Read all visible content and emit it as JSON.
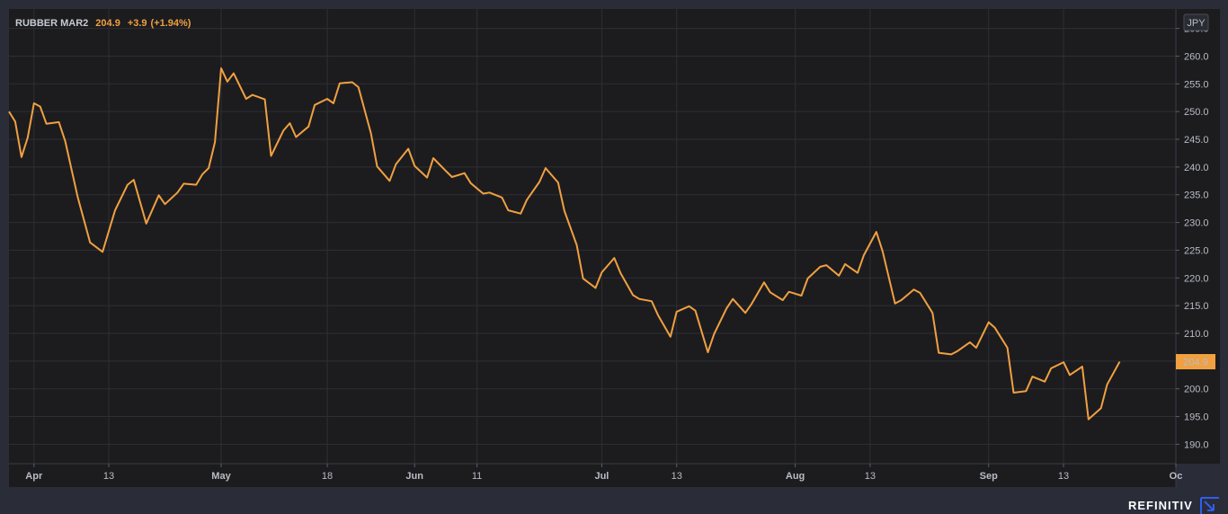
{
  "chart_data": {
    "type": "line",
    "legend": {
      "symbol": "RUBBER MAR2",
      "last": "204.9",
      "change": "+3.9",
      "change_pct": "(+1.94%)"
    },
    "currency": "JPY",
    "last_value_label": "204.9",
    "last_value": 204.9,
    "y_ticks": [
      265,
      260,
      255,
      250,
      245,
      240,
      235,
      230,
      225,
      220,
      215,
      210,
      205,
      200,
      195,
      190
    ],
    "y_tick_labels": [
      "265.0",
      "260.0",
      "255.0",
      "250.0",
      "245.0",
      "240.0",
      "235.0",
      "230.0",
      "225.0",
      "220.0",
      "215.0",
      "210.0",
      "205.0",
      "200.0",
      "195.0",
      "190.0"
    ],
    "ylim": [
      186.5,
      268.5
    ],
    "x_ticks": [
      {
        "label": "Apr",
        "date": "2021-04-01",
        "bold": true
      },
      {
        "label": "13",
        "date": "2021-04-13",
        "bold": false
      },
      {
        "label": "May",
        "date": "2021-05-01",
        "bold": true
      },
      {
        "label": "18",
        "date": "2021-05-18",
        "bold": false
      },
      {
        "label": "Jun",
        "date": "2021-06-01",
        "bold": true
      },
      {
        "label": "11",
        "date": "2021-06-11",
        "bold": false
      },
      {
        "label": "Jul",
        "date": "2021-07-01",
        "bold": true
      },
      {
        "label": "13",
        "date": "2021-07-13",
        "bold": false
      },
      {
        "label": "Aug",
        "date": "2021-08-01",
        "bold": true
      },
      {
        "label": "13",
        "date": "2021-08-13",
        "bold": false
      },
      {
        "label": "Sep",
        "date": "2021-09-01",
        "bold": true
      },
      {
        "label": "13",
        "date": "2021-09-13",
        "bold": false
      },
      {
        "label": "Oc",
        "date": "2021-10-01",
        "bold": true
      }
    ],
    "xlim": [
      "2021-03-28",
      "2021-10-01"
    ],
    "grid": true,
    "series": [
      {
        "color": "#f0a040",
        "points": [
          [
            "2021-03-28",
            250.0
          ],
          [
            "2021-03-29",
            248.2
          ],
          [
            "2021-03-30",
            241.8
          ],
          [
            "2021-03-31",
            245.3
          ],
          [
            "2021-04-01",
            251.5
          ],
          [
            "2021-04-02",
            250.9
          ],
          [
            "2021-04-03",
            247.8
          ],
          [
            "2021-04-05",
            248.1
          ],
          [
            "2021-04-06",
            244.7
          ],
          [
            "2021-04-08",
            234.6
          ],
          [
            "2021-04-10",
            226.4
          ],
          [
            "2021-04-12",
            224.7
          ],
          [
            "2021-04-14",
            232.2
          ],
          [
            "2021-04-16",
            236.8
          ],
          [
            "2021-04-17",
            237.7
          ],
          [
            "2021-04-19",
            229.8
          ],
          [
            "2021-04-21",
            234.9
          ],
          [
            "2021-04-22",
            233.3
          ],
          [
            "2021-04-24",
            235.4
          ],
          [
            "2021-04-25",
            237.0
          ],
          [
            "2021-04-27",
            236.8
          ],
          [
            "2021-04-28",
            238.7
          ],
          [
            "2021-04-29",
            239.8
          ],
          [
            "2021-04-30",
            244.5
          ],
          [
            "2021-05-01",
            257.8
          ],
          [
            "2021-05-02",
            255.4
          ],
          [
            "2021-05-03",
            256.9
          ],
          [
            "2021-05-05",
            252.3
          ],
          [
            "2021-05-06",
            253.0
          ],
          [
            "2021-05-08",
            252.2
          ],
          [
            "2021-05-09",
            242.0
          ],
          [
            "2021-05-11",
            246.6
          ],
          [
            "2021-05-12",
            247.9
          ],
          [
            "2021-05-13",
            245.4
          ],
          [
            "2021-05-15",
            247.3
          ],
          [
            "2021-05-16",
            251.2
          ],
          [
            "2021-05-18",
            252.3
          ],
          [
            "2021-05-19",
            251.5
          ],
          [
            "2021-05-20",
            255.1
          ],
          [
            "2021-05-22",
            255.3
          ],
          [
            "2021-05-23",
            254.4
          ],
          [
            "2021-05-25",
            246.1
          ],
          [
            "2021-05-26",
            240.1
          ],
          [
            "2021-05-28",
            237.5
          ],
          [
            "2021-05-29",
            240.5
          ],
          [
            "2021-05-31",
            243.3
          ],
          [
            "2021-06-01",
            240.2
          ],
          [
            "2021-06-03",
            238.1
          ],
          [
            "2021-06-04",
            241.6
          ],
          [
            "2021-06-06",
            239.3
          ],
          [
            "2021-06-07",
            238.2
          ],
          [
            "2021-06-09",
            238.9
          ],
          [
            "2021-06-10",
            237.1
          ],
          [
            "2021-06-12",
            235.2
          ],
          [
            "2021-06-13",
            235.4
          ],
          [
            "2021-06-15",
            234.5
          ],
          [
            "2021-06-16",
            232.2
          ],
          [
            "2021-06-18",
            231.6
          ],
          [
            "2021-06-19",
            234.1
          ],
          [
            "2021-06-21",
            237.3
          ],
          [
            "2021-06-22",
            239.8
          ],
          [
            "2021-06-24",
            237.2
          ],
          [
            "2021-06-25",
            232.1
          ],
          [
            "2021-06-27",
            225.9
          ],
          [
            "2021-06-28",
            219.9
          ],
          [
            "2021-06-30",
            218.2
          ],
          [
            "2021-07-01",
            221.0
          ],
          [
            "2021-07-03",
            223.6
          ],
          [
            "2021-07-04",
            220.9
          ],
          [
            "2021-07-06",
            216.9
          ],
          [
            "2021-07-07",
            216.2
          ],
          [
            "2021-07-09",
            215.8
          ],
          [
            "2021-07-10",
            213.3
          ],
          [
            "2021-07-12",
            209.4
          ],
          [
            "2021-07-13",
            213.9
          ],
          [
            "2021-07-15",
            214.9
          ],
          [
            "2021-07-16",
            214.1
          ],
          [
            "2021-07-18",
            206.6
          ],
          [
            "2021-07-19",
            209.9
          ],
          [
            "2021-07-21",
            214.5
          ],
          [
            "2021-07-22",
            216.2
          ],
          [
            "2021-07-24",
            213.7
          ],
          [
            "2021-07-25",
            215.3
          ],
          [
            "2021-07-27",
            219.2
          ],
          [
            "2021-07-28",
            217.4
          ],
          [
            "2021-07-30",
            216.0
          ],
          [
            "2021-07-31",
            217.5
          ],
          [
            "2021-08-02",
            216.8
          ],
          [
            "2021-08-03",
            219.9
          ],
          [
            "2021-08-05",
            222.0
          ],
          [
            "2021-08-06",
            222.3
          ],
          [
            "2021-08-08",
            220.4
          ],
          [
            "2021-08-09",
            222.5
          ],
          [
            "2021-08-11",
            220.9
          ],
          [
            "2021-08-12",
            224.1
          ],
          [
            "2021-08-14",
            228.3
          ],
          [
            "2021-08-15",
            224.8
          ],
          [
            "2021-08-17",
            215.4
          ],
          [
            "2021-08-18",
            216.0
          ],
          [
            "2021-08-20",
            217.9
          ],
          [
            "2021-08-21",
            217.3
          ],
          [
            "2021-08-23",
            213.7
          ],
          [
            "2021-08-24",
            206.5
          ],
          [
            "2021-08-26",
            206.2
          ],
          [
            "2021-08-27",
            206.8
          ],
          [
            "2021-08-29",
            208.4
          ],
          [
            "2021-08-30",
            207.4
          ],
          [
            "2021-09-01",
            212.0
          ],
          [
            "2021-09-02",
            211.0
          ],
          [
            "2021-09-04",
            207.4
          ],
          [
            "2021-09-05",
            199.3
          ],
          [
            "2021-09-07",
            199.6
          ],
          [
            "2021-09-08",
            202.2
          ],
          [
            "2021-09-10",
            201.3
          ],
          [
            "2021-09-11",
            203.7
          ],
          [
            "2021-09-13",
            204.8
          ],
          [
            "2021-09-14",
            202.5
          ],
          [
            "2021-09-16",
            204.0
          ],
          [
            "2021-09-17",
            194.5
          ],
          [
            "2021-09-19",
            196.5
          ],
          [
            "2021-09-20",
            200.8
          ],
          [
            "2021-09-22",
            204.9
          ]
        ]
      }
    ]
  },
  "brand": {
    "name": "REFINITIV",
    "icon": "refinitiv-logo-icon",
    "accent": "#2f5ef0"
  },
  "colors": {
    "page_bg": "#2a2d38",
    "plot_bg": "#1c1c1f",
    "grid": "#2e2f34",
    "line": "#f0a040",
    "legend_value": "#f0a040",
    "axis_text": "#b9bcc6"
  }
}
